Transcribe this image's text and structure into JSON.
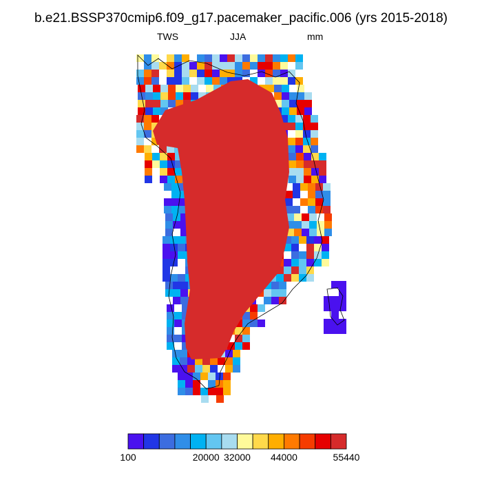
{
  "title": "b.e21.BSSP370cmip6.f09_g17.pacemaker_pacific.006 (yrs 2015-2018)",
  "subtitle": {
    "left": "TWS",
    "center": "JJA",
    "right": "mm"
  },
  "colorbar": {
    "colors": [
      "#4a11ef",
      "#2136e6",
      "#3c6de0",
      "#2f8ee8",
      "#00b2f2",
      "#63c6f1",
      "#a8dcf0",
      "#fffa9a",
      "#ffd94a",
      "#ffae00",
      "#ff7a00",
      "#f63c00",
      "#e60000",
      "#d62b2b"
    ],
    "labels": [
      {
        "text": "100",
        "index": 0
      },
      {
        "text": "20000",
        "index": 5
      },
      {
        "text": "32000",
        "index": 7
      },
      {
        "text": "44000",
        "index": 10
      },
      {
        "text": "55440",
        "index": 14
      }
    ]
  }
}
